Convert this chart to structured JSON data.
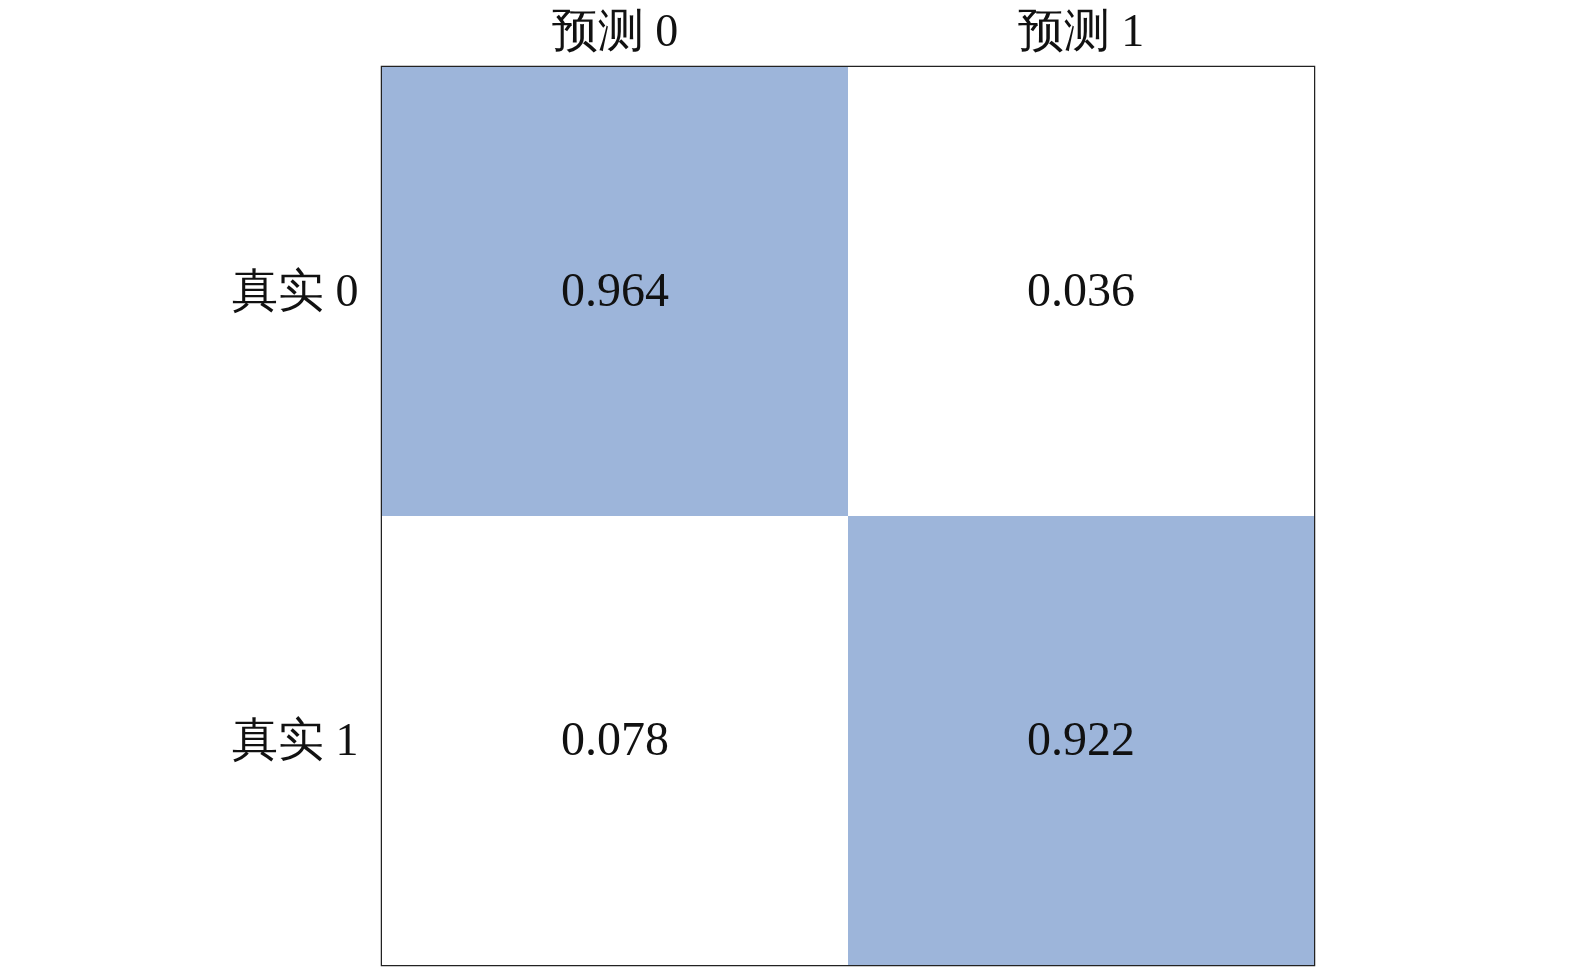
{
  "chart_data": {
    "type": "heatmap",
    "categories": [
      "预测  0",
      "预测  1"
    ],
    "y_categories": [
      "真实  0",
      "真实  1"
    ],
    "cells": [
      [
        0.964,
        0.036
      ],
      [
        0.078,
        0.922
      ]
    ],
    "data_labels": true,
    "colors": [
      "#9db5da",
      "#ffffff",
      "#ffffff",
      "#9db5da"
    ]
  }
}
